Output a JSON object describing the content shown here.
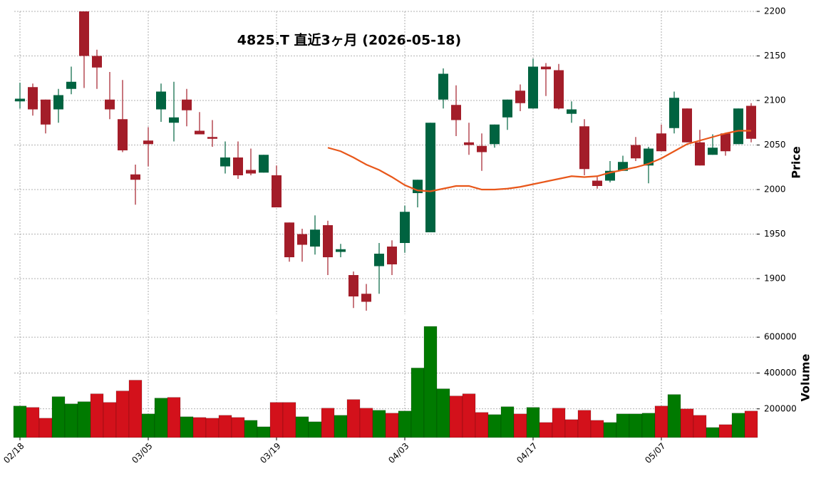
{
  "chart_data": {
    "type": "candlestick",
    "title": "4825.T  直近3ヶ月 (2026-05-18)",
    "ylabel": "Price",
    "categories": [
      "02/18",
      null,
      null,
      null,
      null,
      null,
      null,
      null,
      null,
      null,
      "03/05",
      null,
      null,
      null,
      null,
      null,
      null,
      null,
      null,
      null,
      "03/19",
      null,
      null,
      null,
      null,
      null,
      null,
      null,
      null,
      null,
      "04/03",
      null,
      null,
      null,
      null,
      null,
      null,
      null,
      null,
      null,
      "04/17",
      null,
      null,
      null,
      null,
      null,
      null,
      null,
      null,
      null,
      "05/07",
      null,
      null,
      null,
      null,
      null,
      null,
      null
    ],
    "open": [
      2099,
      2115,
      2101,
      2090,
      2113,
      2200,
      2150,
      2101,
      2079,
      2017,
      2055,
      2090,
      2075,
      2101,
      2066,
      2059,
      2026,
      2036,
      2022,
      2019,
      2016,
      1963,
      1950,
      1936,
      1960,
      1930,
      1904,
      1883,
      1914,
      1936,
      1940,
      1996,
      1952,
      2101,
      2095,
      2053,
      2049,
      2051,
      2081,
      2111,
      2091,
      2138,
      2134,
      2085,
      2071,
      2010,
      2010,
      2021,
      2050,
      2027,
      2063,
      2069,
      2091,
      2053,
      2039,
      2063,
      2051,
      2094
    ],
    "high": [
      2120,
      2119,
      2101,
      2113,
      2138,
      2200,
      2157,
      2132,
      2123,
      2028,
      2070,
      2119,
      2121,
      2113,
      2087,
      2078,
      2054,
      2054,
      2046,
      2039,
      2027,
      1963,
      1956,
      1971,
      1965,
      1939,
      1908,
      1894,
      1940,
      1943,
      1982,
      2011,
      2075,
      2136,
      2117,
      2075,
      2063,
      2073,
      2101,
      2118,
      2147,
      2142,
      2141,
      2099,
      2079,
      2014,
      2032,
      2038,
      2059,
      2048,
      2073,
      2110,
      2091,
      2067,
      2062,
      2063,
      2091,
      2097
    ],
    "low": [
      2091,
      2083,
      2063,
      2075,
      2107,
      2114,
      2113,
      2079,
      2042,
      1983,
      2026,
      2076,
      2054,
      2071,
      2062,
      2048,
      2018,
      2012,
      2016,
      2019,
      1980,
      1919,
      1919,
      1927,
      1904,
      1924,
      1867,
      1864,
      1883,
      1904,
      1929,
      1980,
      1952,
      2091,
      2060,
      2039,
      2021,
      2047,
      2067,
      2088,
      2091,
      2105,
      2090,
      2075,
      2016,
      2001,
      2008,
      2021,
      2032,
      2007,
      2043,
      2063,
      2053,
      2027,
      2039,
      2038,
      2051,
      2053
    ],
    "close": [
      2102,
      2090,
      2073,
      2106,
      2121,
      2150,
      2137,
      2090,
      2044,
      2011,
      2051,
      2110,
      2081,
      2089,
      2062,
      2057,
      2036,
      2016,
      2018,
      2039,
      1980,
      1924,
      1938,
      1955,
      1924,
      1933,
      1880,
      1874,
      1928,
      1916,
      1975,
      2011,
      2075,
      2130,
      2078,
      2050,
      2042,
      2073,
      2101,
      2097,
      2138,
      2135,
      2091,
      2090,
      2023,
      2004,
      2021,
      2031,
      2035,
      2046,
      2043,
      2103,
      2053,
      2027,
      2047,
      2043,
      2091,
      2057
    ],
    "up_color": "#006340",
    "down_color": "#a31d29",
    "ylim": [
      1860,
      2200
    ],
    "yticks": [
      1900,
      1950,
      2000,
      2050,
      2100,
      2150,
      2200
    ],
    "grid": true,
    "ma": {
      "color": "#e8571a",
      "values": [
        null,
        null,
        null,
        null,
        null,
        null,
        null,
        null,
        null,
        null,
        null,
        null,
        null,
        null,
        null,
        null,
        null,
        null,
        null,
        null,
        null,
        null,
        null,
        null,
        2047,
        2043,
        2036,
        2028,
        2022,
        2014,
        2005,
        1999,
        1998,
        2001,
        2004,
        2004,
        2000,
        2000,
        2001,
        2003,
        2006,
        2009,
        2012,
        2015,
        2014,
        2015,
        2019,
        2022,
        2025,
        2029,
        2035,
        2043,
        2051,
        2055,
        2059,
        2063,
        2066,
        2066
      ]
    },
    "volume": {
      "ylabel": "Volume",
      "values": [
        216000,
        208000,
        148000,
        268000,
        228000,
        240000,
        284000,
        236000,
        300000,
        360000,
        172000,
        260000,
        264000,
        156000,
        152000,
        148000,
        164000,
        152000,
        136000,
        100000,
        236000,
        236000,
        156000,
        128000,
        204000,
        164000,
        252000,
        204000,
        192000,
        176000,
        188000,
        428000,
        660000,
        312000,
        272000,
        284000,
        180000,
        168000,
        212000,
        172000,
        208000,
        124000,
        204000,
        140000,
        192000,
        136000,
        124000,
        172000,
        172000,
        176000,
        216000,
        280000,
        200000,
        164000,
        96000,
        112000,
        176000,
        188000
      ],
      "up_color": "#007a00",
      "down_color": "#d3111b",
      "ylim": [
        40000,
        700000
      ],
      "yticks": [
        200000,
        400000,
        600000
      ]
    }
  }
}
